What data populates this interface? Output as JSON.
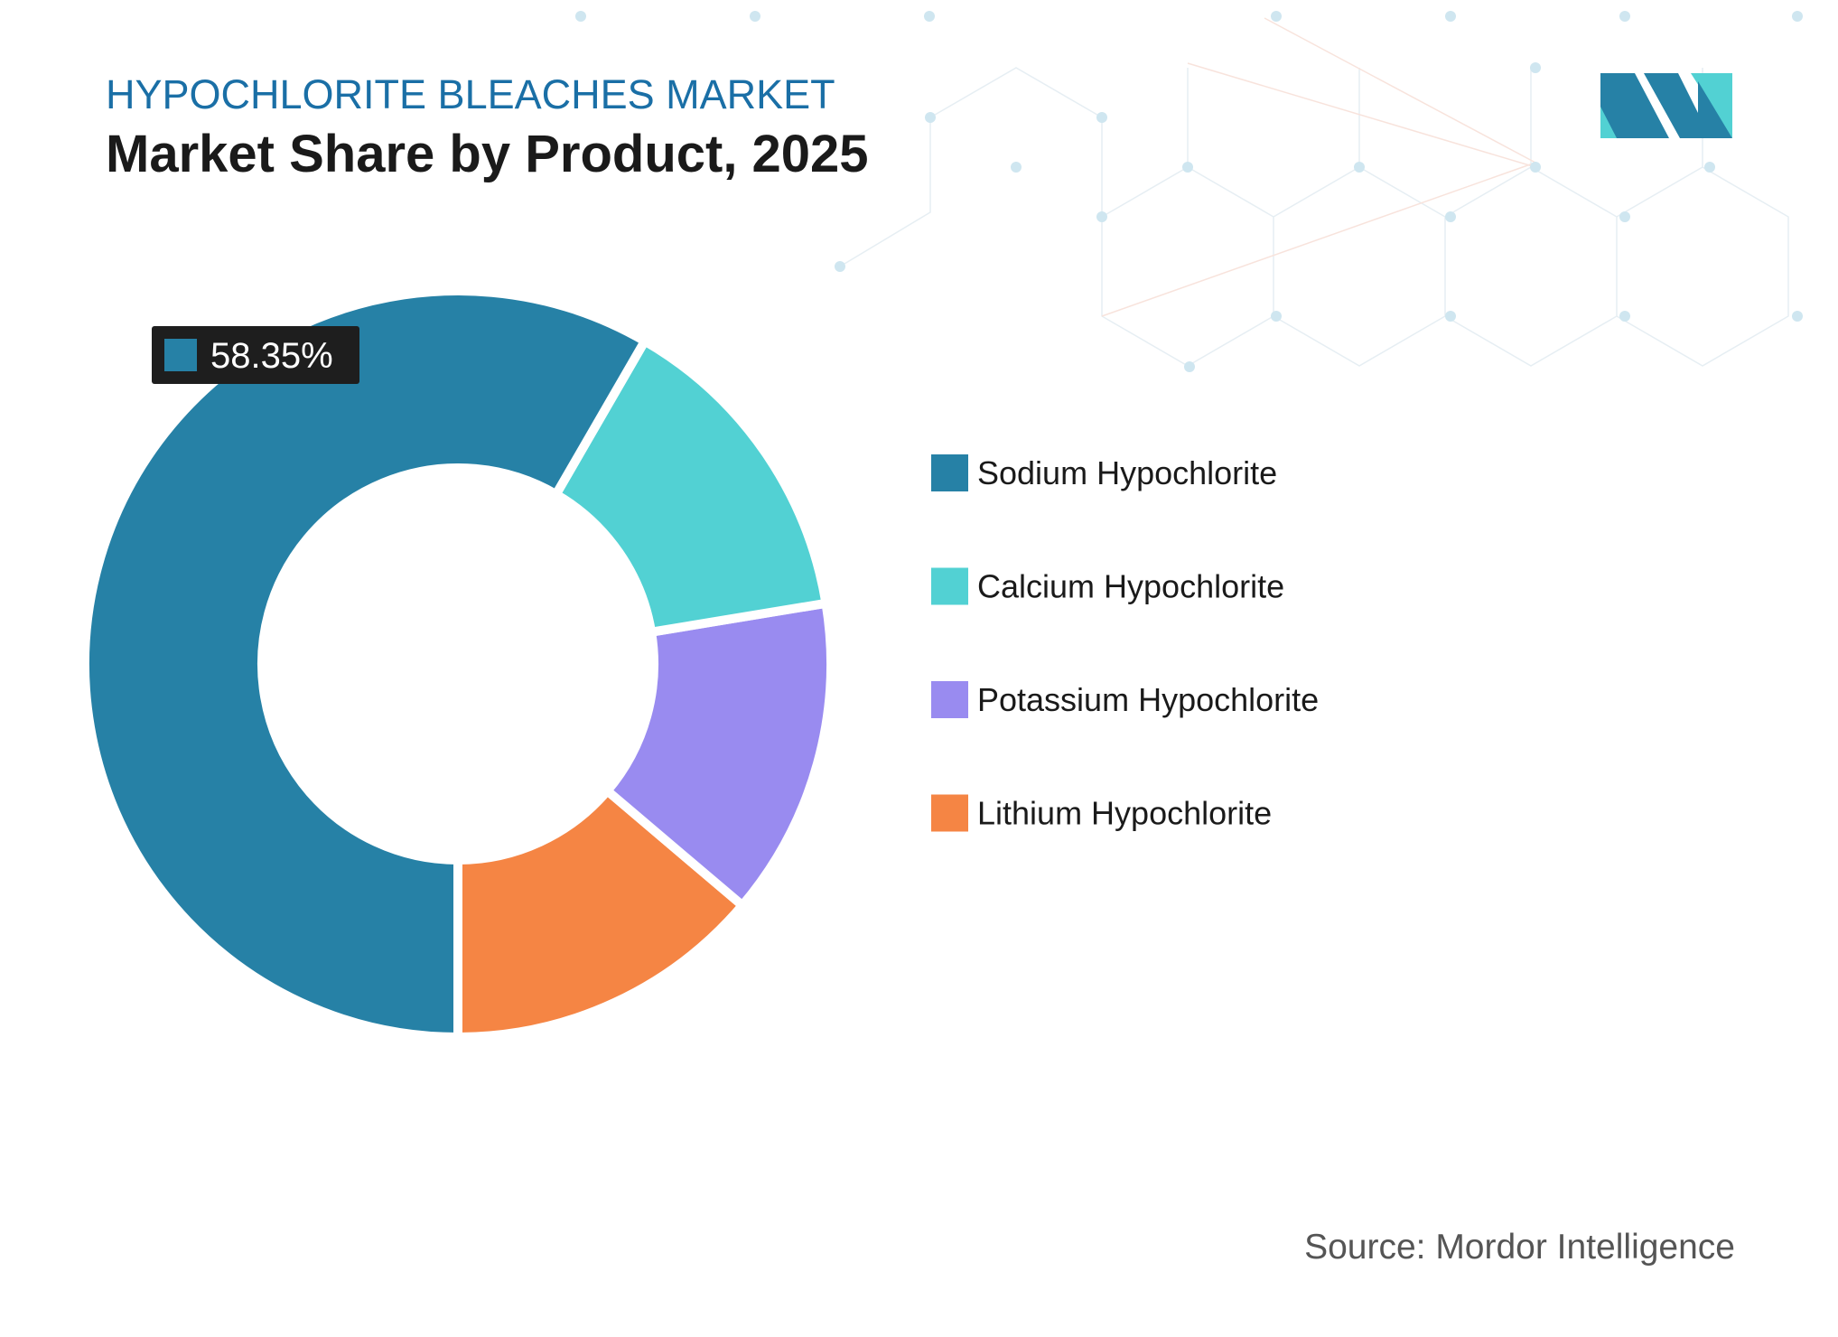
{
  "chart_data": {
    "type": "donut",
    "title": "HYPOCHLORITE BLEACHES MARKET",
    "subtitle": "Market Share by Product, 2025",
    "categories": [
      "Sodium Hypochlorite",
      "Calcium Hypochlorite",
      "Potassium Hypochlorite",
      "Lithium Hypochlorite"
    ],
    "values": [
      58.35,
      14.05,
      13.8,
      13.8
    ],
    "value_labels": [
      "58.35%",
      null,
      null,
      null
    ],
    "colors": [
      "#2681a6",
      "#52d1d3",
      "#998bf0",
      "#f58544"
    ],
    "source": "Source: Mordor Intelligence"
  }
}
